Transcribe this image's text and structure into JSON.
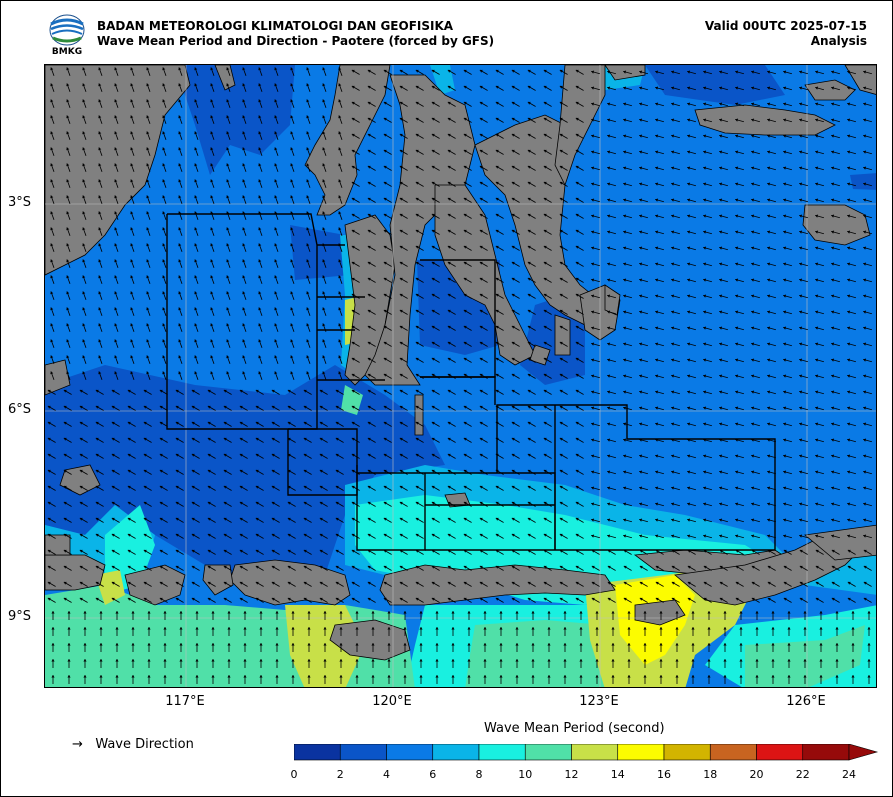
{
  "header": {
    "agency": "BADAN METEOROLOGI KLIMATOLOGI DAN GEOFISIKA",
    "product": "Wave Mean Period and Direction - Paotere (forced by GFS)",
    "valid": "Valid 00UTC 2025-07-15",
    "mode": "Analysis",
    "logo_text": "BMKG"
  },
  "map": {
    "lat_ticks": [
      "3°S",
      "6°S",
      "9°S"
    ],
    "lon_ticks": [
      "117°E",
      "120°E",
      "123°E",
      "126°E"
    ]
  },
  "legend": {
    "arrow_symbol": "→",
    "arrow_label": "Wave Direction"
  },
  "colorbar": {
    "title": "Wave Mean Period (second)",
    "ticks": [
      "0",
      "2",
      "4",
      "6",
      "8",
      "10",
      "12",
      "14",
      "16",
      "18",
      "20",
      "22",
      "24"
    ],
    "colors": [
      "#0a33a0",
      "#0a55c8",
      "#0a7ae6",
      "#0ab4e8",
      "#19f0e0",
      "#50e0a8",
      "#c8e048",
      "#fcfc00",
      "#d2b400",
      "#c86420",
      "#dc1414",
      "#960a0a"
    ]
  },
  "colors": {
    "land": "#808080",
    "sea_4_6": "#0a7ae6",
    "sea_2_4": "#0a55c8",
    "sea_6_8": "#0ab4e8",
    "sea_8_10": "#19f0e0",
    "sea_10_12": "#50e0a8",
    "sea_12_14": "#c8e048",
    "sea_14_16": "#fcfc00"
  }
}
